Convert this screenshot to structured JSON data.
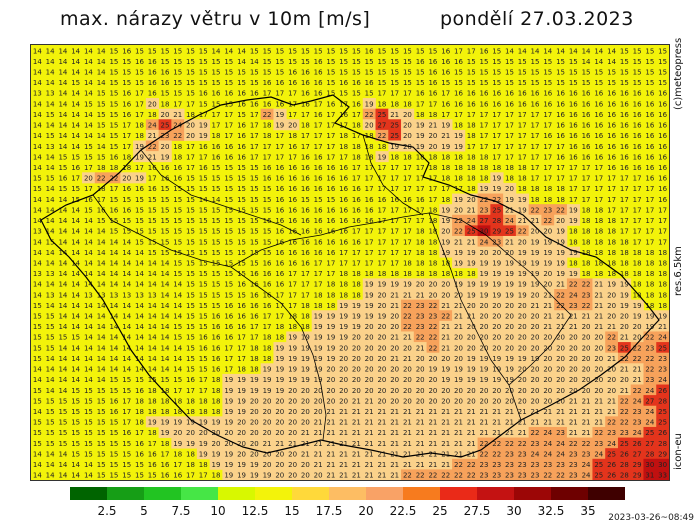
{
  "title": {
    "left": "max. nárazy větru v 10m [m/s]",
    "right": "pondělí 27.03.2023"
  },
  "side_labels": {
    "meteopress": "(c)meteopress",
    "resolution": "res.6.5km",
    "model": "icon-eu"
  },
  "timestamp": "2023-03-26~08:49",
  "legend": {
    "colors": [
      "#006400",
      "#169e16",
      "#22c422",
      "#46e646",
      "#d8f800",
      "#f3f30a",
      "#ffd93a",
      "#fdbd63",
      "#f9a266",
      "#f77b1e",
      "#ea2a18",
      "#c41212",
      "#9c0606",
      "#6e0000",
      "#3f0000"
    ],
    "ticks": [
      "2.5",
      "5",
      "7.5",
      "10",
      "12.5",
      "15",
      "17.5",
      "20",
      "22.5",
      "25",
      "27.5",
      "30",
      "32.5",
      "35"
    ]
  },
  "map": {
    "field_colors": {
      "base": "#f3f30a",
      "orange_light": "#fbd28b",
      "orange": "#f7a25b",
      "red": "#e3341c",
      "dark_red": "#c01010"
    },
    "border_color": "#000000",
    "grid_rows": [
      "14 14 14 14 14 14 15 16 15 15 15 15 15 15 14 14 14 15 15 15 15 15 15 15 15 15 16 15 15 15 15 15 16 17 17 16 15 14 14 14 14 14 14 14 14 14 15 15 15 15",
      "14 14 14 14 14 14 15 15 16 16 15 15 15 15 15 15 14 14 15 15 15 15 16 15 15 15 15 15 15 15 16 16 16 16 15 15 15 15 15 15 15 15 15 14 14 14 15 15 15 15",
      "14 14 14 14 14 14 15 15 15 16 16 15 15 15 15 15 15 15 15 15 16 16 16 15 15 15 15 15 15 15 15 16 16 15 15 15 15 15 15 15 15 15 15 15 15 15 15 15 15 15",
      "14 14 14 15 14 14 15 15 15 16 16 15 15 15 15 15 15 15 16 16 16 16 16 15 16 16 16 15 15 15 15 16 15 15 15 15 15 15 15 15 15 15 15 15 15 15 15 15 15 15",
      "13 13 14 14 14 15 15 16 17 16 15 15 15 16 16 16 16 16 17 17 17 16 16 15 15 15 15 17 17 17 16 16 17 16 16 16 16 16 16 16 16 16 16 16 16 16 16 16 16 16",
      "14 14 14 14 15 15 15 16 17 20 18 17 17 15 15 15 16 16 16 16 17 16 17 16 17 16 19 18 18 18 17 17 16 16 16 16 16 16 16 16 16 16 16 16 16 16 16 16 16 16",
      "14 15 14 14 14 15 15 16 17 18 20 21 18 17 17 17 15 17 22 19 17 17 16 17 16 17 22 25 21 20 18 18 17 17 17 17 17 17 17 17 17 16 16 16 16 16 16 16 16 16",
      "14 14 14 14 14 15 15 17 18 24 25 24 20 19 17 17 16 17 18 19 20 18 17 17 17 18 20 27 25 20 19 21 19 18 18 17 17 17 17 17 17 16 16 16 16 16 16 16 16 16",
      "14 15 14 14 14 14 15 17 18 21 23 22 20 19 18 17 16 17 18 17 18 17 17 17 18 17 18 22 25 20 19 20 21 19 18 17 17 17 17 17 16 16 16 16 16 16 16 16 16 16",
      "14 13 14 14 15 14 15 17 19 22 20 18 17 16 16 16 16 17 17 17 16 17 17 17 18 18 18 18 19 20 19 20 19 19 17 17 17 17 17 17 17 17 16 16 16 16 16 16 16 16",
      "14 14 15 15 15 15 16 18 19 21 19 18 17 17 16 16 16 17 17 17 17 16 16 17 17 18 18 19 18 18 18 18 18 18 18 18 17 17 17 17 17 16 16 16 16 16 16 16 16 16",
      "14 14 15 16 17 18 18 18 17 16 16 16 17 16 15 15 15 15 16 16 16 16 16 16 16 17 17 17 17 17 17 18 18 18 18 18 18 18 18 17 17 17 17 17 17 16 16 16 16 16",
      "15 15 16 17 20 22 22 20 19 17 16 16 15 15 15 15 15 15 16 16 16 16 16 16 16 17 17 17 17 17 17 17 18 18 18 18 19 18 18 17 17 17 17 17 17 17 17 17 16 16",
      "15 14 15 15 17 18 17 16 16 16 15 15 15 15 15 15 15 15 15 16 16 16 16 16 16 16 17 17 17 17 17 17 17 17 18 19 19 20 18 18 18 18 17 17 17 17 17 17 17 16",
      "14 14 14 15 16 17 15 15 15 15 15 15 15 14 14 15 15 15 15 16 16 15 15 15 16 16 16 16 16 16 16 17 18 19 20 22 22 19 19 18 18 18 17 17 17 17 17 17 17 16",
      "14 14 14 14 15 16 16 16 15 15 15 15 15 15 15 15 15 15 15 16 16 16 16 16 16 16 16 17 17 17 17 18 19 20 21 23 25 21 19 22 23 22 19 18 18 17 17 17 17 17",
      "14 14 14 14 14 15 15 15 15 15 15 15 15 15 15 15 15 15 16 16 16 16 16 16 16 16 16 17 17 17 17 18 19 22 24 27 28 24 21 21 22 20 19 18 18 18 17 17 17 17",
      "13 14 14 14 14 14 15 15 15 15 15 15 15 15 15 15 15 15 15 16 16 16 16 16 16 17 17 17 17 17 18 18 20 22 25 30 29 25 22 20 20 19 18 18 18 18 17 17 17 17",
      "14 15 14 14 14 14 14 14 15 15 15 15 15 15 15 15 15 15 15 16 16 16 16 16 16 16 17 17 17 17 18 18 19 21 21 24 23 21 20 19 19 19 18 18 18 18 18 17 17 17",
      "14 14 14 14 14 14 14 14 14 15 15 15 15 15 15 15 15 15 15 16 16 16 16 16 17 17 17 17 17 17 18 18 19 19 19 20 20 20 19 19 19 19 19 18 18 18 18 18 18 18",
      "14 14 14 14 14 14 14 14 14 14 14 15 15 15 15 15 15 15 16 16 16 16 17 17 17 17 17 17 17 18 18 18 18 19 19 19 19 19 19 19 19 19 18 18 18 18 18 18 18 18",
      "13 13 14 14 14 14 14 14 14 14 14 15 15 15 15 15 15 16 16 16 17 17 17 17 18 18 18 18 18 18 18 18 18 18 18 19 19 19 19 19 20 19 19 18 18 18 18 18 18 18",
      "14 14 14 14 14 14 14 14 14 14 14 14 15 15 15 15 16 16 16 16 17 17 17 18 18 18 19 19 19 19 20 20 20 19 19 19 19 19 19 19 20 21 22 22 21 19 19 18 18 18",
      "14 13 14 14 13 13 13 13 13 13 14 14 15 15 15 15 15 16 16 17 17 17 18 18 18 18 19 20 21 21 21 20 20 20 19 19 19 19 19 20 21 22 24 23 21 20 19 18 18 18",
      "15 14 14 14 14 14 14 14 14 14 14 14 15 15 15 16 16 16 16 17 17 18 18 18 19 19 19 20 21 22 23 22 21 21 20 20 20 20 20 21 21 22 23 22 21 20 19 19 18 18",
      "15 15 14 14 14 14 14 14 14 14 14 14 15 15 16 16 16 16 17 17 18 18 19 19 19 19 19 19 20 22 23 23 22 21 21 20 20 20 20 20 21 21 21 21 21 20 20 19 19 19",
      "15 15 14 14 14 14 14 14 14 14 14 15 15 15 16 16 16 17 17 18 18 18 19 19 19 19 20 20 20 22 23 22 21 21 20 20 20 20 20 20 21 21 21 20 21 21 20 20 19 21",
      "15 15 15 15 14 14 14 14 14 14 14 15 15 16 16 16 17 17 18 18 19 19 19 19 19 20 20 20 21 21 22 22 21 20 20 20 20 20 20 20 20 20 20 20 20 22 21 20 22 24",
      "15 15 14 14 14 14 14 14 14 14 14 14 15 16 16 17 17 18 18 19 19 19 19 19 20 20 20 20 20 20 21 22 21 20 20 20 20 20 20 20 20 20 20 20 20 23 25 22 23 25",
      "15 14 14 14 14 14 14 14 14 14 14 14 15 15 16 17 17 18 18 19 19 19 19 19 20 20 20 20 21 21 20 20 20 20 19 19 19 19 19 19 20 20 20 20 20 21 22 22 22 23",
      "14 14 14 14 14 14 14 14 14 14 14 14 15 15 16 17 18 18 19 19 19 19 19 20 20 20 20 20 20 20 20 19 19 19 19 19 19 19 20 20 20 20 20 20 20 20 21 21 22 23",
      "14 14 14 14 14 14 15 15 15 15 15 15 16 17 18 19 19 19 19 19 19 19 19 20 20 20 20 20 20 20 20 20 19 19 19 19 19 19 20 20 20 20 20 20 20 20 20 21 23 24",
      "15 14 14 15 15 15 15 15 16 18 18 17 17 17 18 19 19 19 19 19 20 20 20 20 20 20 20 20 20 20 20 20 20 20 20 20 20 20 20 20 20 20 20 20 20 20 21 22 24 26",
      "15 15 15 15 15 15 16 17 18 18 18 18 18 18 18 19 19 20 20 20 20 20 20 20 20 21 21 20 20 20 20 20 20 20 20 20 20 20 20 20 20 20 21 21 21 21 22 24 27 28",
      "14 15 15 15 15 15 16 17 18 18 18 18 18 18 18 19 19 20 20 20 20 20 20 21 21 21 21 21 21 21 21 21 21 21 21 21 21 21 21 21 21 21 21 21 21 21 22 23 24 25",
      "15 15 15 15 15 15 15 17 18 19 19 19 19 19 19 19 20 20 20 20 20 20 21 21 21 21 21 21 21 21 21 21 21 21 21 21 21 21 21 21 21 21 21 21 21 22 22 23 24 25",
      "15 15 15 15 15 15 15 16 17 18 19 20 20 20 20 20 20 20 20 20 20 21 21 21 21 21 21 21 21 21 21 21 21 21 21 21 21 21 21 22 24 23 21 21 22 23 23 24 25 26",
      "15 15 15 15 15 15 15 15 16 17 18 19 19 19 20 20 20 20 21 21 21 21 21 21 21 21 21 21 21 21 21 21 21 21 21 22 22 22 22 23 24 24 22 22 23 24 25 26 27 28",
      "14 14 14 15 15 15 15 15 16 16 17 18 18 19 19 19 20 20 20 20 20 21 21 21 21 21 21 21 21 21 21 21 21 21 21 22 22 23 23 24 24 24 23 23 24 25 26 27 28 29",
      "14 14 14 14 14 15 15 15 15 16 16 17 18 18 19 19 19 19 20 20 20 20 21 21 21 21 21 21 21 21 21 21 21 22 22 23 23 23 23 23 23 23 23 24 25 26 28 29 30 30",
      "14 14 14 14 14 15 15 15 15 15 16 16 17 17 18 19 19 19 19 20 20 20 20 21 21 21 21 21 21 22 22 22 22 22 22 23 23 23 23 23 22 22 23 24 25 26 28 29 31 33"
    ]
  }
}
